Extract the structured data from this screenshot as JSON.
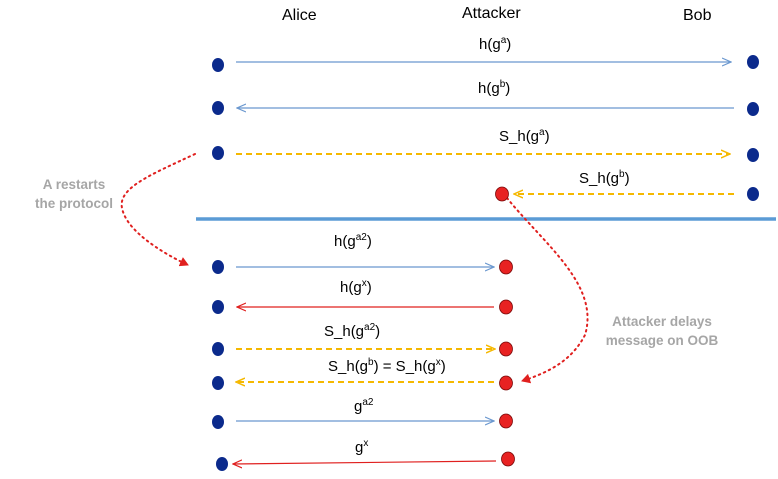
{
  "parties": {
    "alice": "Alice",
    "attacker": "Attacker",
    "bob": "Bob"
  },
  "notes": {
    "restart": [
      "A restarts",
      "the protocol"
    ],
    "delay": [
      "Attacker delays",
      "message on OOB"
    ]
  },
  "messages": [
    {
      "base": "h(g",
      "sup": "a",
      "tail": ")"
    },
    {
      "base": "h(g",
      "sup": "b",
      "tail": ")"
    },
    {
      "base": "S_h(g",
      "sup": "a",
      "tail": ")"
    },
    {
      "base": "S_h(g",
      "sup": "b",
      "tail": ")"
    },
    {
      "base": "h(g",
      "sup": "a2",
      "tail": ")"
    },
    {
      "base": "h(g",
      "sup": "x",
      "tail": ")"
    },
    {
      "base": "S_h(g",
      "sup": "a2",
      "tail": ")"
    },
    {
      "base": "S_h(g",
      "sup": "b",
      "tail": ") = S_h(g",
      "sup2": "x",
      "tail2": ")"
    },
    {
      "base": "g",
      "sup": "a2",
      "tail": ""
    },
    {
      "base": "g",
      "sup": "x",
      "tail": ""
    }
  ],
  "colors": {
    "blue_arrow": "#6b98cf",
    "red_arrow": "#e0201f",
    "yellow_arrow": "#f5b800",
    "divider": "#5b9bd5",
    "dot_blue": "#0b2a8c",
    "dot_red": "#e82222",
    "note_text": "#a6a6a6",
    "dotted_red": "#e0201f"
  }
}
